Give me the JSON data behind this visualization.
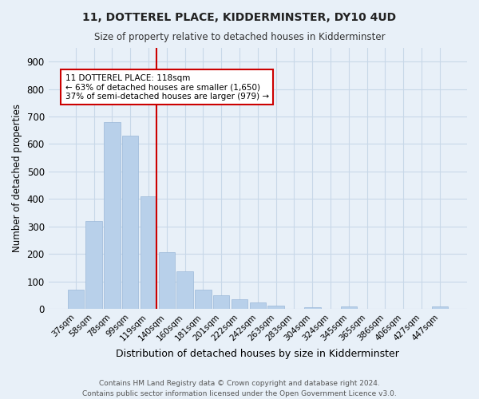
{
  "title": "11, DOTTEREL PLACE, KIDDERMINSTER, DY10 4UD",
  "subtitle": "Size of property relative to detached houses in Kidderminster",
  "xlabel": "Distribution of detached houses by size in Kidderminster",
  "ylabel": "Number of detached properties",
  "categories": [
    "37sqm",
    "58sqm",
    "78sqm",
    "99sqm",
    "119sqm",
    "140sqm",
    "160sqm",
    "181sqm",
    "201sqm",
    "222sqm",
    "242sqm",
    "263sqm",
    "283sqm",
    "304sqm",
    "324sqm",
    "345sqm",
    "365sqm",
    "386sqm",
    "406sqm",
    "427sqm",
    "447sqm"
  ],
  "values": [
    70,
    320,
    680,
    630,
    410,
    205,
    135,
    70,
    48,
    35,
    22,
    12,
    0,
    5,
    0,
    10,
    0,
    0,
    0,
    0,
    10
  ],
  "bar_color": "#b8d0ea",
  "bar_edge_color": "#9ab8d8",
  "vline_color": "#cc0000",
  "annotation_text": "11 DOTTEREL PLACE: 118sqm\n← 63% of detached houses are smaller (1,650)\n37% of semi-detached houses are larger (979) →",
  "annotation_box_color": "white",
  "annotation_box_edge": "#cc0000",
  "ylim": [
    0,
    950
  ],
  "yticks": [
    0,
    100,
    200,
    300,
    400,
    500,
    600,
    700,
    800,
    900
  ],
  "grid_color": "#c8d8e8",
  "background_color": "#e8f0f8",
  "footer_line1": "Contains HM Land Registry data © Crown copyright and database right 2024.",
  "footer_line2": "Contains public sector information licensed under the Open Government Licence v3.0."
}
